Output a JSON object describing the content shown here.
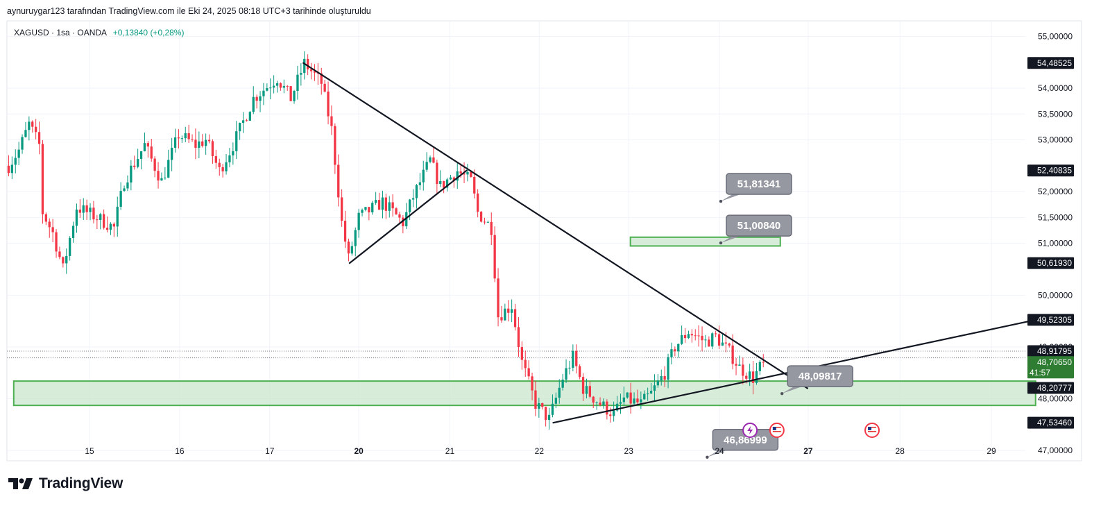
{
  "header": {
    "credit": "aynuruygar123 tarafından TradingView.com ile Eki 24, 2025 08:18 UTC+3 tarihinde oluşturuldu"
  },
  "legend": {
    "symbol": "XAGUSD · 1sa · OANDA",
    "change": "+0,13840 (+0,28%)"
  },
  "brand": {
    "name": "TradingView"
  },
  "colors": {
    "up": "#089981",
    "down": "#f23645",
    "zone_fill": "#c8e6c9",
    "zone_border": "#4caf50",
    "trendline": "#131722",
    "callout": "#9598a1"
  },
  "chart_data": {
    "type": "candlestick",
    "symbol": "XAGUSD",
    "interval": "1sa",
    "broker": "OANDA",
    "x_ticks": [
      {
        "label": "15",
        "bold": false
      },
      {
        "label": "16",
        "bold": false
      },
      {
        "label": "17",
        "bold": false
      },
      {
        "label": "20",
        "bold": true
      },
      {
        "label": "21",
        "bold": false
      },
      {
        "label": "22",
        "bold": false
      },
      {
        "label": "23",
        "bold": false
      },
      {
        "label": "24",
        "bold": false
      },
      {
        "label": "27",
        "bold": true
      },
      {
        "label": "28",
        "bold": false
      },
      {
        "label": "29",
        "bold": false
      }
    ],
    "y_axis": {
      "min": 46.8,
      "max": 55.3,
      "ticks": [
        "55,00000",
        "54,00000",
        "53,50000",
        "53,00000",
        "52,00000",
        "51,50000",
        "51,00000",
        "50,00000",
        "49,00000",
        "48,00000",
        "47,00000"
      ],
      "tick_values": [
        55,
        54,
        53.5,
        53,
        52,
        51.5,
        51,
        50,
        49,
        48,
        47
      ]
    },
    "price_labels": [
      {
        "text": "54,48525",
        "value": 54.485,
        "style": "dark"
      },
      {
        "text": "52,40835",
        "value": 52.408,
        "style": "dark"
      },
      {
        "text": "50,61930",
        "value": 50.619,
        "style": "dark"
      },
      {
        "text": "49,52305",
        "value": 49.523,
        "style": "dark"
      },
      {
        "text": "48,91795",
        "value": 48.918,
        "style": "dark"
      },
      {
        "text": "48,70650",
        "value": 48.707,
        "style": "green",
        "sub": "41:57"
      },
      {
        "text": "48,20777",
        "value": 48.208,
        "style": "dark"
      },
      {
        "text": "47,53460",
        "value": 47.535,
        "style": "dark"
      }
    ],
    "candle_path": [
      [
        0,
        52.5
      ],
      [
        3,
        52.8
      ],
      [
        6,
        53.3
      ],
      [
        9,
        52.9
      ],
      [
        10,
        51.6
      ],
      [
        13,
        51.2
      ],
      [
        16,
        50.5
      ],
      [
        20,
        51.7
      ],
      [
        26,
        51.5
      ],
      [
        31,
        51.3
      ],
      [
        34,
        52.2
      ],
      [
        40,
        52.9
      ],
      [
        45,
        52.2
      ],
      [
        50,
        53.1
      ],
      [
        55,
        52.9
      ],
      [
        58,
        53.0
      ],
      [
        62,
        52.4
      ],
      [
        66,
        52.9
      ],
      [
        72,
        53.8
      ],
      [
        79,
        54.2
      ],
      [
        83,
        53.8
      ],
      [
        87,
        54.48
      ],
      [
        92,
        54.1
      ],
      [
        95,
        53.2
      ],
      [
        97,
        52.0
      ],
      [
        98,
        51.4
      ],
      [
        100,
        50.7
      ],
      [
        103,
        51.5
      ],
      [
        110,
        51.8
      ],
      [
        116,
        51.4
      ],
      [
        119,
        51.9
      ],
      [
        124,
        52.6
      ],
      [
        127,
        52.1
      ],
      [
        132,
        52.4
      ],
      [
        136,
        52.2
      ],
      [
        138,
        51.6
      ],
      [
        142,
        51.3
      ],
      [
        144,
        49.6
      ],
      [
        148,
        49.8
      ],
      [
        151,
        48.7
      ],
      [
        155,
        47.9
      ],
      [
        159,
        47.6
      ],
      [
        163,
        48.4
      ],
      [
        166,
        48.8
      ],
      [
        169,
        48.2
      ],
      [
        174,
        47.9
      ],
      [
        178,
        47.7
      ],
      [
        181,
        48.0
      ],
      [
        186,
        47.9
      ],
      [
        189,
        48.1
      ],
      [
        193,
        48.5
      ],
      [
        196,
        49.0
      ],
      [
        200,
        49.3
      ],
      [
        205,
        49.1
      ],
      [
        208,
        49.2
      ],
      [
        212,
        48.9
      ],
      [
        215,
        48.6
      ],
      [
        219,
        48.4
      ],
      [
        222,
        48.7
      ]
    ],
    "trendlines": [
      {
        "from": {
          "x": 87.2,
          "y": 54.485
        },
        "to": {
          "x": 235.5,
          "y": 48.2
        }
      },
      {
        "from": {
          "x": 100.8,
          "y": 50.619
        },
        "to": {
          "x": 135.2,
          "y": 52.408
        }
      },
      {
        "from": {
          "x": 160.7,
          "y": 47.535
        },
        "to": {
          "x": 302.6,
          "y": 49.523
        }
      }
    ],
    "zones": [
      {
        "from": {
          "x": 183.4,
          "y": 51.12
        },
        "to": {
          "x": 227.5,
          "y": 50.95
        }
      },
      {
        "from": {
          "x": 2,
          "y": 48.34
        },
        "to": {
          "x": 302.6,
          "y": 47.87
        }
      }
    ],
    "callouts": [
      {
        "text": "51,81341",
        "value": 51.81341,
        "anchor_x": 210
      },
      {
        "text": "51,00840",
        "value": 51.0084,
        "anchor_x": 210
      },
      {
        "text": "48,09817",
        "value": 48.09817,
        "anchor_x": 228
      },
      {
        "text": "46,86999",
        "value": 46.86999,
        "anchor_x": 206
      }
    ],
    "dotted_levels": [
      48.918,
      48.79
    ],
    "event_icons": [
      {
        "x": 218.6,
        "icon": "lightning-icon"
      },
      {
        "x": 226.5,
        "icon": "us-flag-icon"
      },
      {
        "x": 254.5,
        "icon": "us-flag-icon"
      }
    ]
  }
}
